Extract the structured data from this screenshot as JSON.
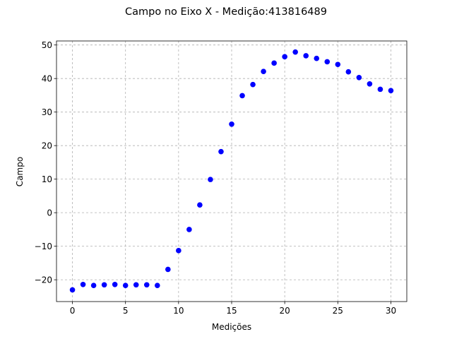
{
  "chart_data": {
    "type": "scatter",
    "title": "Campo no Eixo X - Medição:413816489",
    "xlabel": "Medições",
    "ylabel": "Campo",
    "xlim": [
      -1.5,
      31.5
    ],
    "ylim": [
      -26.5,
      51.2
    ],
    "xticks": [
      0,
      5,
      10,
      15,
      20,
      25,
      30
    ],
    "yticks": [
      -20,
      -10,
      0,
      10,
      20,
      30,
      40,
      50
    ],
    "xtick_labels": [
      "0",
      "5",
      "10",
      "15",
      "20",
      "25",
      "30"
    ],
    "ytick_labels": [
      "−20",
      "−10",
      "0",
      "10",
      "20",
      "30",
      "40",
      "50"
    ],
    "grid": true,
    "color": "#0000ff",
    "x": [
      0,
      1,
      2,
      3,
      4,
      5,
      6,
      7,
      8,
      9,
      10,
      11,
      12,
      13,
      14,
      15,
      16,
      17,
      18,
      19,
      20,
      21,
      22,
      23,
      24,
      25,
      26,
      27,
      28,
      29,
      30
    ],
    "y": [
      -23.0,
      -21.4,
      -21.7,
      -21.5,
      -21.4,
      -21.7,
      -21.5,
      -21.5,
      -21.7,
      -16.9,
      -11.3,
      -5.0,
      2.3,
      9.9,
      18.2,
      26.4,
      34.9,
      38.2,
      42.1,
      44.6,
      46.5,
      47.9,
      46.8,
      46.0,
      45.0,
      44.2,
      42.0,
      40.3,
      38.4,
      36.8,
      36.4
    ]
  }
}
